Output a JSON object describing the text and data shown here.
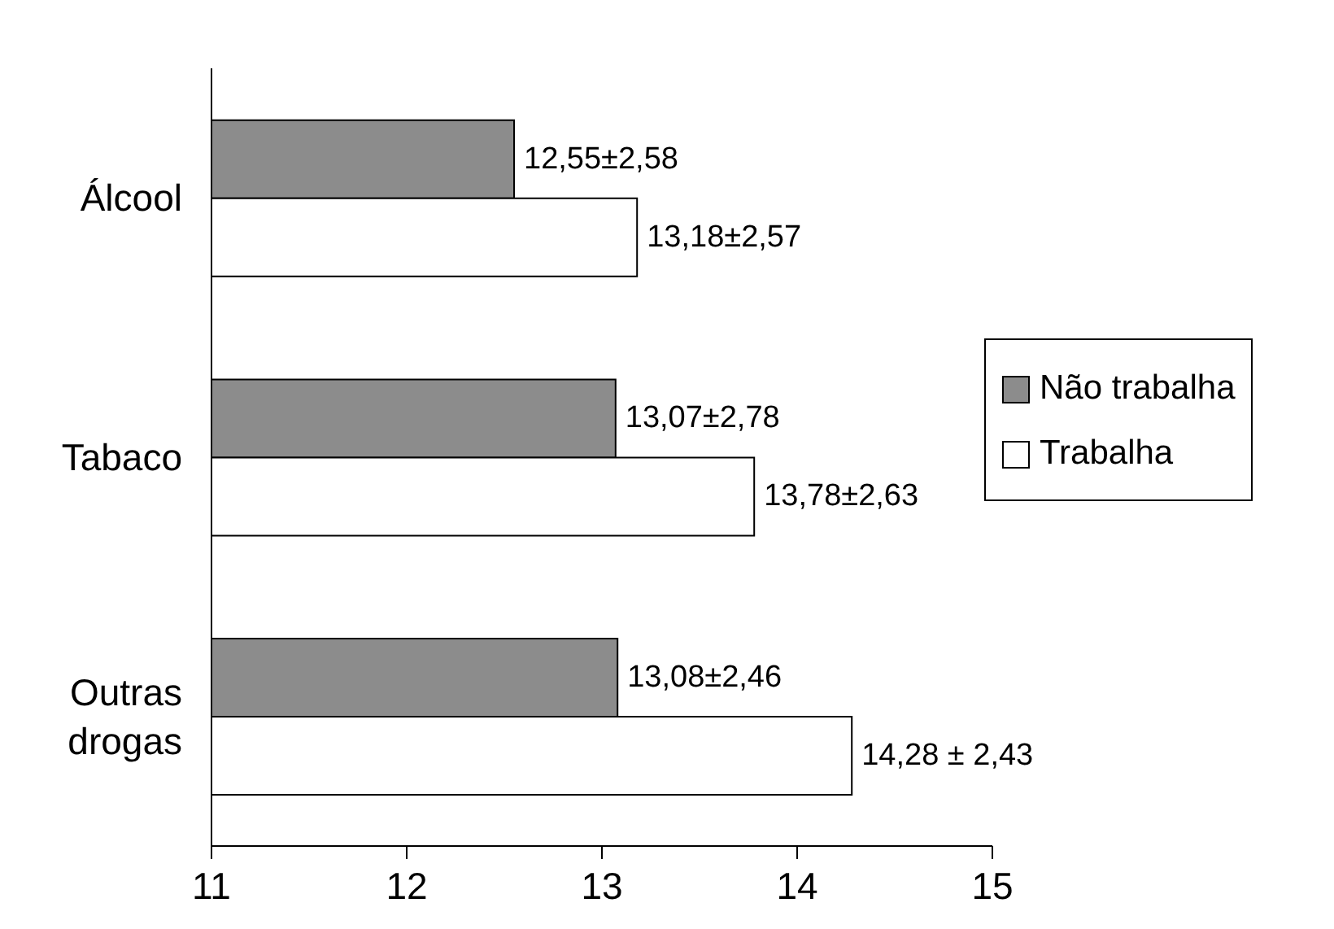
{
  "chart_data": {
    "type": "bar",
    "orientation": "horizontal",
    "categories": [
      "Álcool",
      "Tabaco",
      "Outras drogas"
    ],
    "series": [
      {
        "name": "Não trabalha",
        "color": "#8c8c8c",
        "values": [
          12.55,
          13.07,
          13.08
        ],
        "value_labels": [
          "12,55±2,58",
          "13,07±2,78",
          "13,08±2,46"
        ]
      },
      {
        "name": "Trabalha",
        "color": "#ffffff",
        "values": [
          13.18,
          13.78,
          14.28
        ],
        "value_labels": [
          "13,18±2,57",
          "13,78±2,63",
          "14,28 ± 2,43"
        ]
      }
    ],
    "xlim": [
      11,
      15
    ],
    "xticks": [
      11,
      12,
      13,
      14,
      15
    ],
    "grid": false,
    "legend": "right"
  }
}
